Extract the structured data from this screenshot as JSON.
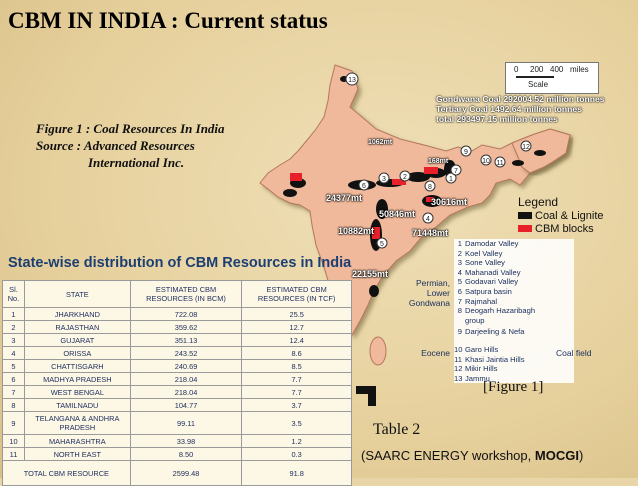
{
  "slide": {
    "title": "CBM IN INDIA : Current status",
    "figure_caption": [
      "Figure 1 : Coal Resources In India",
      "Source : Advanced Resources",
      "International Inc."
    ],
    "table_heading": "State-wise distribution of CBM Resources in India",
    "figure_ref": "[Figure 1]",
    "table_ref": "Table 2",
    "source_prefix": "(SAARC ENERGY workshop, ",
    "source_bold": "MOCGI",
    "source_suffix": ")"
  },
  "table": {
    "headers": [
      "Sl. No.",
      "STATE",
      "ESTIMATED CBM RESOURCES (IN BCM)",
      "ESTIMATED CBM RESOURCES (IN TCF)"
    ],
    "rows": [
      [
        "1",
        "JHARKHAND",
        "722.08",
        "25.5"
      ],
      [
        "2",
        "RAJASTHAN",
        "359.62",
        "12.7"
      ],
      [
        "3",
        "GUJARAT",
        "351.13",
        "12.4"
      ],
      [
        "4",
        "ORISSA",
        "243.52",
        "8.6"
      ],
      [
        "5",
        "CHATTISGARH",
        "240.69",
        "8.5"
      ],
      [
        "6",
        "MADHYA PRADESH",
        "218.04",
        "7.7"
      ],
      [
        "7",
        "WEST BENGAL",
        "218.04",
        "7.7"
      ],
      [
        "8",
        "TAMILNADU",
        "104.77",
        "3.7"
      ],
      [
        "9",
        "TELANGANA & ANDHRA PRADESH",
        "99.11",
        "3.5"
      ],
      [
        "10",
        "MAHARASHTRA",
        "33.98",
        "1.2"
      ],
      [
        "11",
        "NORTH EAST",
        "8.50",
        "0.3"
      ]
    ],
    "total": [
      "TOTAL CBM RESOURCE",
      "2599.48",
      "91.8"
    ]
  },
  "map": {
    "scale_labels": [
      "0",
      "200",
      "400",
      "miles"
    ],
    "scale_caption": "Scale",
    "totals": [
      "Gondwana Coal 292004.52 million tonnes",
      "Tertiary Coal 1492.64 million tonnes",
      "total          293497.15 million tonnes"
    ],
    "legend_title": "Legend",
    "legend_items": [
      {
        "label": "Coal & Lignite",
        "color": "#111111"
      },
      {
        "label": "CBM blocks",
        "color": "#e8202a"
      }
    ],
    "fields": [
      {
        "n": "1",
        "name": "Damodar Valley"
      },
      {
        "n": "2",
        "name": "Koel Valley"
      },
      {
        "n": "3",
        "name": "Sone Valley"
      },
      {
        "n": "4",
        "name": "Mahanadi Valley"
      },
      {
        "n": "5",
        "name": "Godavari Valley"
      },
      {
        "n": "6",
        "name": "Satpura basin"
      },
      {
        "n": "7",
        "name": "Rajmahal"
      },
      {
        "n": "8",
        "name": "Deogarh Hazaribagh group"
      },
      {
        "n": "9",
        "name": "Darjeeling & Nefa"
      },
      {
        "n": "10",
        "name": "Garo Hills"
      },
      {
        "n": "11",
        "name": "Khasi Jaintia Hills"
      },
      {
        "n": "12",
        "name": "Mikir Hills"
      },
      {
        "n": "13",
        "name": "Jammu"
      }
    ],
    "groups": [
      "Permian, Lower Gondwana",
      "Eocene",
      "Coal field"
    ],
    "region_labels": [
      "24377mt",
      "10882mt",
      "50846mt",
      "30616mt",
      "71448mt",
      "22155mt",
      "1062mt",
      "168mt"
    ],
    "region_numbers": [
      "13",
      "1",
      "2",
      "3",
      "4",
      "5",
      "6",
      "7",
      "8",
      "9",
      "10",
      "11",
      "12"
    ]
  }
}
